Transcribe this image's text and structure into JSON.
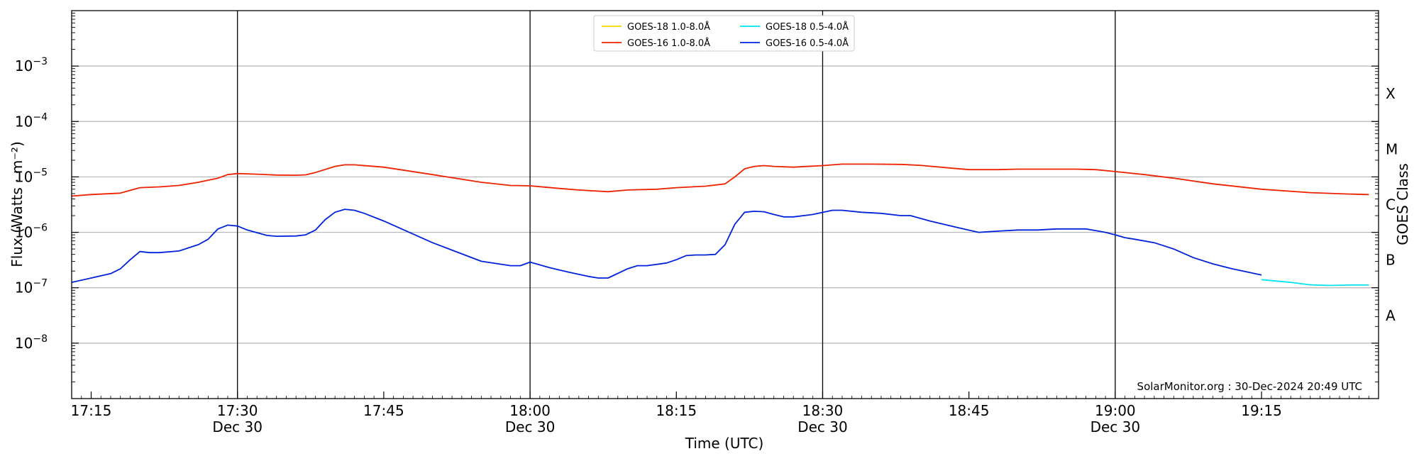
{
  "chart_data": {
    "type": "line",
    "title": "",
    "xlabel": "Time (UTC)",
    "ylabel": "Flux (Watts · m⁻²)",
    "ylabel_right": "GOES Class",
    "credit": "SolarMonitor.org : 30-Dec-2024 20:49 UTC",
    "y_scale": "log",
    "ylim": [
      1e-09,
      0.01
    ],
    "xlim": [
      "17:13",
      "19:27"
    ],
    "grid": "horizontal",
    "legend_position": "top-center",
    "x_ticks": [
      {
        "time": "17:15",
        "label": "17:15",
        "sublabel": ""
      },
      {
        "time": "17:30",
        "label": "17:30",
        "sublabel": "Dec 30"
      },
      {
        "time": "17:45",
        "label": "17:45",
        "sublabel": ""
      },
      {
        "time": "18:00",
        "label": "18:00",
        "sublabel": "Dec 30"
      },
      {
        "time": "18:15",
        "label": "18:15",
        "sublabel": ""
      },
      {
        "time": "18:30",
        "label": "18:30",
        "sublabel": "Dec 30"
      },
      {
        "time": "18:45",
        "label": "18:45",
        "sublabel": ""
      },
      {
        "time": "19:00",
        "label": "19:00",
        "sublabel": "Dec 30"
      },
      {
        "time": "19:15",
        "label": "19:15",
        "sublabel": ""
      }
    ],
    "vlines": [
      "17:30",
      "18:00",
      "18:30",
      "19:00"
    ],
    "y_ticks": [
      {
        "exp": -8,
        "label": "10",
        "sup": "−8"
      },
      {
        "exp": -7,
        "label": "10",
        "sup": "−7"
      },
      {
        "exp": -6,
        "label": "10",
        "sup": "−6"
      },
      {
        "exp": -5,
        "label": "10",
        "sup": "−5"
      },
      {
        "exp": -4,
        "label": "10",
        "sup": "−4"
      },
      {
        "exp": -3,
        "label": "10",
        "sup": "−3"
      }
    ],
    "goes_classes": [
      {
        "label": "A",
        "exp": -7.5
      },
      {
        "label": "B",
        "exp": -6.5
      },
      {
        "label": "C",
        "exp": -5.5
      },
      {
        "label": "M",
        "exp": -4.5
      },
      {
        "label": "X",
        "exp": -3.5
      }
    ],
    "series": [
      {
        "name": "GOES-18 1.0-8.0Å",
        "color": "#f5d800",
        "x": [],
        "y": []
      },
      {
        "name": "GOES-18 0.5-4.0Å",
        "color": "#00e5ee",
        "x": [
          "19:15",
          "19:18",
          "19:20",
          "19:22",
          "19:24",
          "19:26"
        ],
        "y": [
          1.4e-07,
          1.25e-07,
          1.13e-07,
          1.1e-07,
          1.12e-07,
          1.12e-07
        ]
      },
      {
        "name": "GOES-16 1.0-8.0Å",
        "color": "#ee2200",
        "x": [
          "17:13",
          "17:15",
          "17:18",
          "17:20",
          "17:22",
          "17:24",
          "17:26",
          "17:28",
          "17:29",
          "17:30",
          "17:32",
          "17:34",
          "17:36",
          "17:37",
          "17:38",
          "17:40",
          "17:41",
          "17:42",
          "17:45",
          "17:50",
          "17:55",
          "17:58",
          "18:00",
          "18:03",
          "18:05",
          "18:08",
          "18:10",
          "18:13",
          "18:15",
          "18:18",
          "18:20",
          "18:21",
          "18:22",
          "18:23",
          "18:24",
          "18:25",
          "18:27",
          "18:30",
          "18:32",
          "18:35",
          "18:38",
          "18:40",
          "18:43",
          "18:45",
          "18:48",
          "18:50",
          "18:53",
          "18:56",
          "18:58",
          "19:00",
          "19:03",
          "19:06",
          "19:10",
          "19:15",
          "19:20",
          "19:24",
          "19:26"
        ],
        "y": [
          4.5e-06,
          4.8e-06,
          5.1e-06,
          6.4e-06,
          6.6e-06,
          7e-06,
          8e-06,
          9.5e-06,
          1.1e-05,
          1.15e-05,
          1.12e-05,
          1.08e-05,
          1.07e-05,
          1.09e-05,
          1.2e-05,
          1.55e-05,
          1.65e-05,
          1.65e-05,
          1.5e-05,
          1.1e-05,
          8e-06,
          7e-06,
          6.9e-06,
          6.2e-06,
          5.8e-06,
          5.4e-06,
          5.8e-06,
          6e-06,
          6.4e-06,
          6.8e-06,
          7.5e-06,
          1e-05,
          1.4e-05,
          1.55e-05,
          1.6e-05,
          1.55e-05,
          1.5e-05,
          1.6e-05,
          1.7e-05,
          1.7e-05,
          1.68e-05,
          1.62e-05,
          1.45e-05,
          1.35e-05,
          1.35e-05,
          1.38e-05,
          1.38e-05,
          1.38e-05,
          1.35e-05,
          1.25e-05,
          1.1e-05,
          9.5e-06,
          7.5e-06,
          6e-06,
          5.2e-06,
          4.9e-06,
          4.8e-06
        ]
      },
      {
        "name": "GOES-16 0.5-4.0Å",
        "color": "#0022dd",
        "x": [
          "17:13",
          "17:15",
          "17:17",
          "17:18",
          "17:19",
          "17:20",
          "17:21",
          "17:22",
          "17:24",
          "17:26",
          "17:27",
          "17:28",
          "17:29",
          "17:30",
          "17:31",
          "17:33",
          "17:34",
          "17:36",
          "17:37",
          "17:38",
          "17:39",
          "17:40",
          "17:41",
          "17:42",
          "17:43",
          "17:45",
          "17:50",
          "17:55",
          "17:58",
          "17:59",
          "18:00",
          "18:02",
          "18:04",
          "18:06",
          "18:07",
          "18:08",
          "18:10",
          "18:11",
          "18:12",
          "18:14",
          "18:15",
          "18:16",
          "18:17",
          "18:18",
          "18:19",
          "18:20",
          "18:21",
          "18:22",
          "18:23",
          "18:24",
          "18:25",
          "18:26",
          "18:27",
          "18:29",
          "18:31",
          "18:32",
          "18:34",
          "18:36",
          "18:38",
          "18:39",
          "18:41",
          "18:44",
          "18:46",
          "18:48",
          "18:50",
          "18:52",
          "18:54",
          "18:56",
          "18:57",
          "18:59",
          "19:00",
          "19:01",
          "19:02",
          "19:04",
          "19:06",
          "19:08",
          "19:10",
          "19:12",
          "19:15"
        ],
        "y": [
          1.25e-07,
          1.5e-07,
          1.8e-07,
          2.2e-07,
          3.2e-07,
          4.5e-07,
          4.3e-07,
          4.3e-07,
          4.6e-07,
          6e-07,
          7.5e-07,
          1.15e-06,
          1.35e-06,
          1.3e-06,
          1.1e-06,
          8.8e-07,
          8.5e-07,
          8.6e-07,
          9e-07,
          1.1e-06,
          1.7e-06,
          2.3e-06,
          2.6e-06,
          2.5e-06,
          2.2e-06,
          1.6e-06,
          6.5e-07,
          3e-07,
          2.5e-07,
          2.5e-07,
          2.9e-07,
          2.3e-07,
          1.9e-07,
          1.6e-07,
          1.5e-07,
          1.5e-07,
          2.2e-07,
          2.5e-07,
          2.5e-07,
          2.8e-07,
          3.2e-07,
          3.8e-07,
          3.9e-07,
          3.9e-07,
          4e-07,
          6e-07,
          1.4e-06,
          2.3e-06,
          2.4e-06,
          2.35e-06,
          2.1e-06,
          1.9e-06,
          1.9e-06,
          2.1e-06,
          2.5e-06,
          2.5e-06,
          2.3e-06,
          2.2e-06,
          2e-06,
          2e-06,
          1.6e-06,
          1.2e-06,
          1e-06,
          1.05e-06,
          1.1e-06,
          1.1e-06,
          1.15e-06,
          1.15e-06,
          1.15e-06,
          1e-06,
          9e-07,
          8e-07,
          7.5e-07,
          6.5e-07,
          5e-07,
          3.5e-07,
          2.7e-07,
          2.2e-07,
          1.7e-07
        ]
      }
    ]
  }
}
